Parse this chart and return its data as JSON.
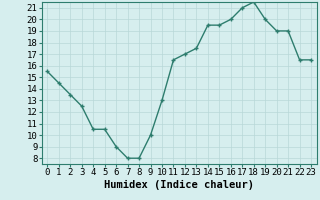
{
  "x": [
    0,
    1,
    2,
    3,
    4,
    5,
    6,
    7,
    8,
    9,
    10,
    11,
    12,
    13,
    14,
    15,
    16,
    17,
    18,
    19,
    20,
    21,
    22,
    23
  ],
  "y": [
    15.5,
    14.5,
    13.5,
    12.5,
    10.5,
    10.5,
    9.0,
    8.0,
    8.0,
    10.0,
    13.0,
    16.5,
    17.0,
    17.5,
    19.5,
    19.5,
    20.0,
    21.0,
    21.5,
    20.0,
    19.0,
    19.0,
    16.5,
    16.5
  ],
  "line_color": "#2e7d6e",
  "marker_color": "#2e7d6e",
  "bg_color": "#d6eeee",
  "grid_color": "#b8d8d8",
  "xlabel": "Humidex (Indice chaleur)",
  "xlim": [
    -0.5,
    23.5
  ],
  "ylim": [
    7.5,
    21.5
  ],
  "yticks": [
    8,
    9,
    10,
    11,
    12,
    13,
    14,
    15,
    16,
    17,
    18,
    19,
    20,
    21
  ],
  "xticks": [
    0,
    1,
    2,
    3,
    4,
    5,
    6,
    7,
    8,
    9,
    10,
    11,
    12,
    13,
    14,
    15,
    16,
    17,
    18,
    19,
    20,
    21,
    22,
    23
  ],
  "xlabel_fontsize": 7.5,
  "tick_fontsize": 6.5,
  "line_width": 1.0,
  "marker_size": 2.5
}
